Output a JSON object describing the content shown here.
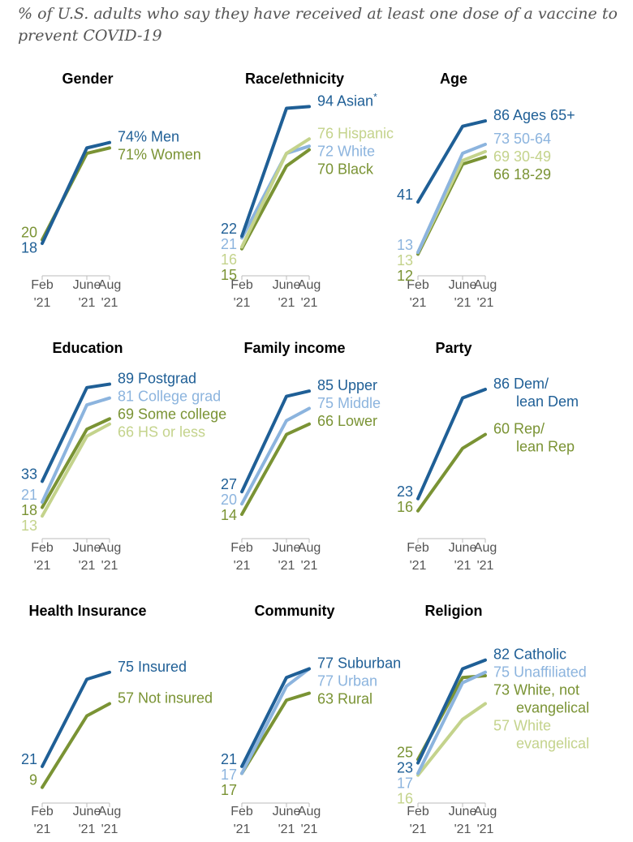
{
  "subtitle": "% of U.S. adults who say they have received at least one dose of a vaccine to prevent COVID-19",
  "colors": {
    "dark_blue": "#1f5f96",
    "light_blue": "#8cb4de",
    "olive": "#7a9334",
    "light_olive": "#c4d38c",
    "axis": "#bbbbbb"
  },
  "chart_data": [
    {
      "type": "line",
      "title": "Gender",
      "x": [
        "Feb '21",
        "June '21",
        "Aug '21"
      ],
      "series": [
        {
          "name": "Men",
          "values": [
            18,
            71,
            74
          ],
          "color": "dark_blue",
          "end_label": "74% Men",
          "start_label": "18"
        },
        {
          "name": "Women",
          "values": [
            20,
            68,
            71
          ],
          "color": "olive",
          "end_label": "71% Women",
          "start_label": "20"
        }
      ]
    },
    {
      "type": "line",
      "title": "Race/ethnicity",
      "x": [
        "Feb '21",
        "June '21",
        "Aug '21"
      ],
      "series": [
        {
          "name": "Asian*",
          "values": [
            22,
            93,
            94
          ],
          "color": "dark_blue",
          "end_label": "94 Asian",
          "end_suffix": "*",
          "start_label": "22"
        },
        {
          "name": "Hispanic",
          "values": [
            16,
            68,
            76
          ],
          "color": "light_olive",
          "end_label": "76 Hispanic",
          "start_label": "16"
        },
        {
          "name": "White",
          "values": [
            21,
            68,
            72
          ],
          "color": "light_blue",
          "end_label": "72 White",
          "start_label": "21"
        },
        {
          "name": "Black",
          "values": [
            15,
            61,
            70
          ],
          "color": "olive",
          "end_label": "70 Black",
          "start_label": "15"
        }
      ]
    },
    {
      "type": "line",
      "title": "Age",
      "x": [
        "Feb '21",
        "June '21",
        "Aug '21"
      ],
      "series": [
        {
          "name": "Ages 65+",
          "values": [
            41,
            83,
            86
          ],
          "color": "dark_blue",
          "end_label": "86 Ages 65+",
          "start_label": "41"
        },
        {
          "name": "50-64",
          "values": [
            13,
            68,
            73
          ],
          "color": "light_blue",
          "end_label": "73 50-64",
          "start_label": "13"
        },
        {
          "name": "30-49",
          "values": [
            13,
            64,
            69
          ],
          "color": "light_olive",
          "end_label": "69 30-49",
          "start_label": "13"
        },
        {
          "name": "18-29",
          "values": [
            12,
            62,
            66
          ],
          "color": "olive",
          "end_label": "66 18-29",
          "start_label": "12"
        }
      ]
    },
    {
      "type": "line",
      "title": "Education",
      "x": [
        "Feb '21",
        "June '21",
        "Aug '21"
      ],
      "series": [
        {
          "name": "Postgrad",
          "values": [
            33,
            87,
            89
          ],
          "color": "dark_blue",
          "end_label": "89 Postgrad",
          "start_label": "33"
        },
        {
          "name": "College grad",
          "values": [
            21,
            77,
            81
          ],
          "color": "light_blue",
          "end_label": "81 College grad",
          "start_label": "21"
        },
        {
          "name": "Some college",
          "values": [
            18,
            63,
            69
          ],
          "color": "olive",
          "end_label": "69 Some college",
          "start_label": "18"
        },
        {
          "name": "HS or less",
          "values": [
            13,
            59,
            66
          ],
          "color": "light_olive",
          "end_label": "66 HS or less",
          "start_label": "13"
        }
      ]
    },
    {
      "type": "line",
      "title": "Family income",
      "x": [
        "Feb '21",
        "June '21",
        "Aug '21"
      ],
      "series": [
        {
          "name": "Upper",
          "values": [
            27,
            82,
            85
          ],
          "color": "dark_blue",
          "end_label": "85 Upper",
          "start_label": "27"
        },
        {
          "name": "Middle",
          "values": [
            20,
            68,
            75
          ],
          "color": "light_blue",
          "end_label": "75 Middle",
          "start_label": "20"
        },
        {
          "name": "Lower",
          "values": [
            14,
            60,
            66
          ],
          "color": "olive",
          "end_label": "66 Lower",
          "start_label": "14"
        }
      ]
    },
    {
      "type": "line",
      "title": "Party",
      "x": [
        "Feb '21",
        "June '21",
        "Aug '21"
      ],
      "series": [
        {
          "name": "Dem/lean Dem",
          "values": [
            23,
            81,
            86
          ],
          "color": "dark_blue",
          "end_label": [
            "86 Dem/",
            "lean Dem"
          ],
          "start_label": "23"
        },
        {
          "name": "Rep/lean Rep",
          "values": [
            16,
            52,
            60
          ],
          "color": "olive",
          "end_label": [
            "60 Rep/",
            "lean Rep"
          ],
          "start_label": "16"
        }
      ]
    },
    {
      "type": "line",
      "title": "Health Insurance",
      "x": [
        "Feb '21",
        "June '21",
        "Aug '21"
      ],
      "series": [
        {
          "name": "Insured",
          "values": [
            21,
            71,
            75
          ],
          "color": "dark_blue",
          "end_label": "75 Insured",
          "start_label": "21"
        },
        {
          "name": "Not insured",
          "values": [
            9,
            50,
            57
          ],
          "color": "olive",
          "end_label": "57 Not insured",
          "start_label": "9"
        }
      ]
    },
    {
      "type": "line",
      "title": "Community",
      "x": [
        "Feb '21",
        "June '21",
        "Aug '21"
      ],
      "series": [
        {
          "name": "Suburban",
          "values": [
            21,
            72,
            77
          ],
          "color": "dark_blue",
          "end_label": "77 Suburban",
          "start_label": "21"
        },
        {
          "name": "Urban",
          "values": [
            17,
            67,
            77
          ],
          "color": "light_blue",
          "end_label": "77 Urban",
          "start_label": "17"
        },
        {
          "name": "Rural",
          "values": [
            17,
            59,
            63
          ],
          "color": "olive",
          "end_label": "63 Rural",
          "start_label": "17"
        }
      ]
    },
    {
      "type": "line",
      "title": "Religion",
      "x": [
        "Feb '21",
        "June '21",
        "Aug '21"
      ],
      "series": [
        {
          "name": "Catholic",
          "values": [
            23,
            77,
            82
          ],
          "color": "dark_blue",
          "end_label": "82 Catholic",
          "start_label": "23"
        },
        {
          "name": "Unaffiliated",
          "values": [
            17,
            69,
            75
          ],
          "color": "light_blue",
          "end_label": "75 Unaffiliated",
          "start_label": "17"
        },
        {
          "name": "White, not evangelical",
          "values": [
            25,
            72,
            73
          ],
          "color": "olive",
          "end_label": [
            "73 White, not",
            "evangelical"
          ],
          "start_label": "25"
        },
        {
          "name": "White evangelical",
          "values": [
            16,
            48,
            57
          ],
          "color": "light_olive",
          "end_label": [
            "57 White",
            "evangelical"
          ],
          "start_label": "16"
        }
      ]
    }
  ]
}
